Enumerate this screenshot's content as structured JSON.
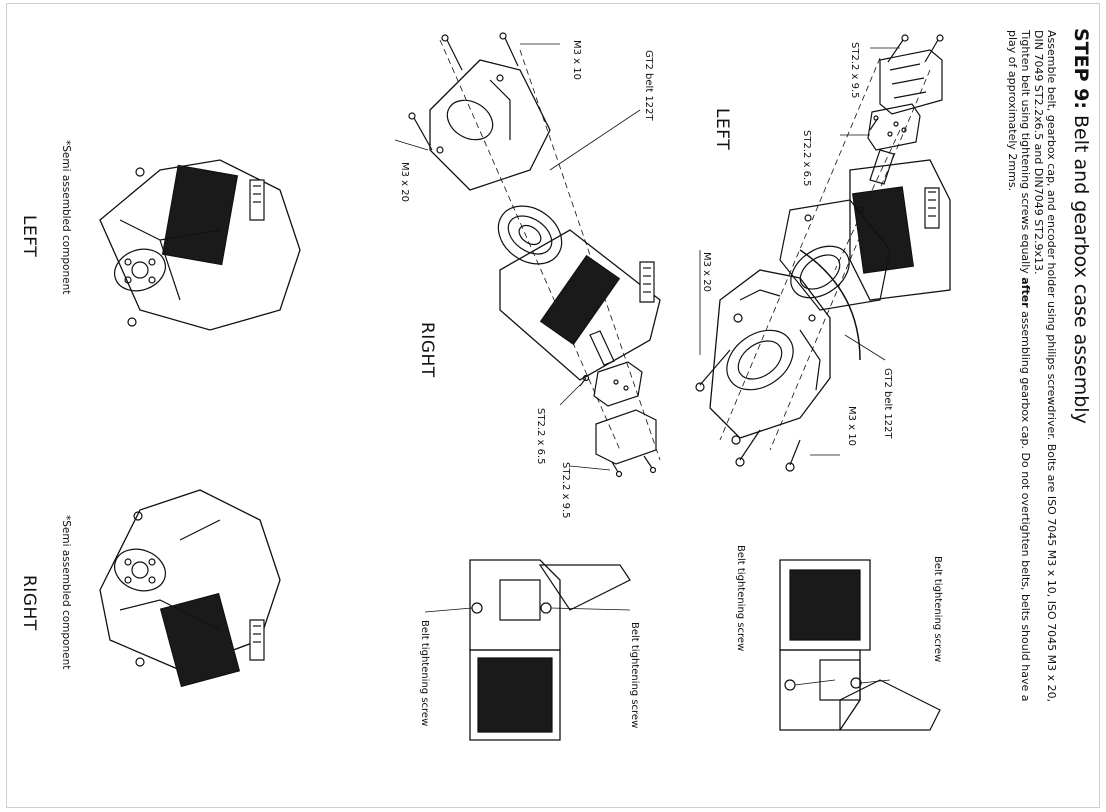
{
  "step": {
    "prefix": "STEP 9:",
    "title": " Belt and gearbox case assembly"
  },
  "instructions": {
    "line1": "Assemble belt, gearbox cap, and encoder holder using philips screwdriver. Bolts are ISO 7045 M3 x 10, ISO 7045 M3 x 20,",
    "line2": "DIN 7049 ST2.2x6.5 and DIN7049 ST2.9x13.",
    "line3_pre": " Tighten belt using tightening screws equally ",
    "line3_bold": "after",
    "line3_post": " assembling gearbox cap. Do not overtighten belts, belts should have a",
    "line4": "play of approximately 2mms."
  },
  "left_exploded": {
    "heading": "LEFT",
    "labels": {
      "st22x95": "ST2.2 x 9.5",
      "st22x65": "ST2.2 x 6.5",
      "m3x20": "M3 x 20",
      "gt2": "GT2 belt 122T",
      "m3x10": "M3 x 10"
    }
  },
  "right_exploded": {
    "heading": "RIGHT",
    "labels": {
      "m3x10": "M3 x 10",
      "gt2": "GT2 belt 122T",
      "m3x20": "M3 x 20",
      "st22x65": "ST2.2 x 6.5",
      "st22x95": "ST2.2 x 9.5"
    }
  },
  "side_views": {
    "top_label": "Belt tightening screw",
    "top_label2": "Belt tightening screw",
    "bottom_label": "Belt tightening screw",
    "bottom_label2": "Belt tightening screw"
  },
  "semi_left": {
    "heading": "LEFT",
    "note": "*Semi  assembled component"
  },
  "semi_right": {
    "heading": "RIGHT",
    "note": "*Semi  assembled component"
  }
}
